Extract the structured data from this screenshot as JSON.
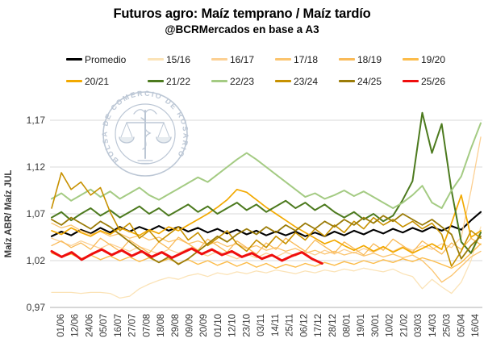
{
  "header": {
    "title": "Futuros agro: Maíz temprano / Maíz tardío",
    "subtitle": "@BCRMercados en base a A3"
  },
  "watermark": {
    "label": "BOLSA DE COMERCIO DE ROSARIO",
    "color": "#b5c1d1"
  },
  "chart_data": {
    "type": "line",
    "title": "Futuros agro: Maíz temprano / Maíz tardío",
    "subtitle": "@BCRMercados en base a A3",
    "ylabel": "Maíz ABR/ Maíz JUL",
    "xlabel": "",
    "grid": true,
    "legend_position": "top",
    "ylim": [
      0.97,
      1.19
    ],
    "yticks": [
      0.97,
      1.02,
      1.07,
      1.12,
      1.17
    ],
    "ytick_labels": [
      "0,97",
      "1,02",
      "1,07",
      "1,12",
      "1,17"
    ],
    "axis_color": "#bfbfbf",
    "grid_color": "#d9d9d9",
    "x_labels": [
      "01/06",
      "12/06",
      "24/06",
      "05/07",
      "16/07",
      "27/07",
      "07/08",
      "18/08",
      "29/08",
      "09/09",
      "20/09",
      "01/10",
      "12/10",
      "23/10",
      "03/11",
      "14/11",
      "25/11",
      "06/12",
      "17/12",
      "28/12",
      "08/01",
      "19/01",
      "30/01",
      "10/02",
      "21/02",
      "03/03",
      "14/03",
      "25/03",
      "05/04",
      "16/04"
    ],
    "series": [
      {
        "name": "Promedio",
        "color": "#000000",
        "width": 2.1,
        "span": 1,
        "values": [
          1.046,
          1.051,
          1.047,
          1.053,
          1.049,
          1.055,
          1.05,
          1.056,
          1.051,
          1.056,
          1.052,
          1.057,
          1.052,
          1.056,
          1.051,
          1.055,
          1.05,
          1.054,
          1.049,
          1.053,
          1.048,
          1.052,
          1.047,
          1.051,
          1.047,
          1.051,
          1.046,
          1.05,
          1.046,
          1.051,
          1.047,
          1.052,
          1.048,
          1.053,
          1.049,
          1.054,
          1.05,
          1.055,
          1.051,
          1.056,
          1.052,
          1.057,
          1.053,
          1.063,
          1.072
        ]
      },
      {
        "name": "15/16",
        "color": "#fbe3b7",
        "width": 1.3,
        "span": 1,
        "values": [
          0.986,
          0.986,
          0.986,
          0.985,
          0.986,
          0.986,
          0.985,
          0.98,
          0.982,
          0.99,
          0.995,
          0.999,
          1.002,
          1.0,
          1.004,
          1.006,
          1.003,
          1.007,
          1.005,
          1.008,
          1.006,
          1.009,
          1.007,
          1.01,
          1.008,
          1.006,
          1.009,
          1.007,
          1.01,
          1.008,
          1.011,
          1.009,
          1.012,
          1.01,
          1.008,
          1.011,
          1.006,
          1.003,
          0.99,
          1.0,
          0.992,
          0.985,
          0.997,
          1.02,
          1.056
        ]
      },
      {
        "name": "16/17",
        "color": "#fcd093",
        "width": 1.3,
        "span": 1,
        "values": [
          1.044,
          1.04,
          1.036,
          1.041,
          1.037,
          1.033,
          1.038,
          1.034,
          1.03,
          1.035,
          1.031,
          1.027,
          1.032,
          1.028,
          1.033,
          1.029,
          1.025,
          1.03,
          1.026,
          1.022,
          1.027,
          1.023,
          1.028,
          1.024,
          1.029,
          1.025,
          1.03,
          1.026,
          1.031,
          1.027,
          1.032,
          1.028,
          1.033,
          1.029,
          1.034,
          1.03,
          1.035,
          1.031,
          1.036,
          1.032,
          1.038,
          1.034,
          1.045,
          1.095,
          1.152
        ]
      },
      {
        "name": "17/18",
        "color": "#fbc46e",
        "width": 1.3,
        "span": 1,
        "values": [
          1.06,
          1.055,
          1.058,
          1.052,
          1.048,
          1.051,
          1.046,
          1.049,
          1.044,
          1.047,
          1.042,
          1.045,
          1.04,
          1.043,
          1.038,
          1.041,
          1.037,
          1.04,
          1.035,
          1.038,
          1.033,
          1.036,
          1.031,
          1.034,
          1.03,
          1.033,
          1.028,
          1.031,
          1.027,
          1.03,
          1.026,
          1.029,
          1.025,
          1.028,
          1.024,
          1.027,
          1.023,
          1.026,
          1.02,
          1.01,
          0.997,
          1.004,
          1.014,
          1.024,
          1.03
        ]
      },
      {
        "name": "18/19",
        "color": "#f9ba58",
        "width": 1.3,
        "span": 1,
        "values": [
          1.036,
          1.041,
          1.034,
          1.039,
          1.032,
          1.044,
          1.037,
          1.03,
          1.042,
          1.035,
          1.028,
          1.04,
          1.033,
          1.045,
          1.038,
          1.031,
          1.043,
          1.036,
          1.029,
          1.041,
          1.034,
          1.027,
          1.039,
          1.032,
          1.044,
          1.037,
          1.03,
          1.042,
          1.035,
          1.028,
          1.04,
          1.033,
          1.026,
          1.038,
          1.031,
          1.043,
          1.036,
          1.029,
          1.041,
          1.034,
          1.027,
          1.039,
          1.032,
          1.044,
          1.037
        ]
      },
      {
        "name": "19/20",
        "color": "#fcbc4a",
        "width": 1.4,
        "span": 1,
        "values": [
          1.028,
          1.024,
          1.027,
          1.022,
          1.026,
          1.021,
          1.025,
          1.02,
          1.024,
          1.019,
          1.023,
          1.018,
          1.022,
          1.017,
          1.021,
          1.016,
          1.02,
          1.015,
          1.019,
          1.014,
          1.018,
          1.013,
          1.017,
          1.012,
          1.016,
          1.013,
          1.017,
          1.014,
          1.018,
          1.015,
          1.019,
          1.016,
          1.02,
          1.017,
          1.021,
          1.018,
          1.022,
          1.019,
          1.023,
          1.02,
          1.016,
          1.012,
          1.018,
          1.028,
          1.038
        ]
      },
      {
        "name": "20/21",
        "color": "#f2a900",
        "width": 1.7,
        "span": 1,
        "values": [
          1.052,
          1.048,
          1.055,
          1.05,
          1.046,
          1.052,
          1.048,
          1.055,
          1.051,
          1.047,
          1.053,
          1.049,
          1.056,
          1.052,
          1.058,
          1.064,
          1.07,
          1.077,
          1.085,
          1.096,
          1.093,
          1.085,
          1.077,
          1.07,
          1.063,
          1.056,
          1.05,
          1.044,
          1.038,
          1.042,
          1.036,
          1.031,
          1.036,
          1.03,
          1.035,
          1.029,
          1.034,
          1.028,
          1.033,
          1.038,
          1.032,
          1.06,
          1.09,
          1.045,
          1.052
        ]
      },
      {
        "name": "21/22",
        "color": "#4c7a1e",
        "width": 2.0,
        "span": 1,
        "values": [
          1.066,
          1.072,
          1.063,
          1.07,
          1.076,
          1.068,
          1.074,
          1.066,
          1.072,
          1.078,
          1.07,
          1.076,
          1.068,
          1.074,
          1.08,
          1.072,
          1.078,
          1.07,
          1.076,
          1.082,
          1.074,
          1.08,
          1.072,
          1.078,
          1.084,
          1.076,
          1.082,
          1.074,
          1.08,
          1.072,
          1.066,
          1.072,
          1.064,
          1.07,
          1.062,
          1.068,
          1.085,
          1.105,
          1.178,
          1.135,
          1.166,
          1.095,
          1.04,
          1.028,
          1.05
        ]
      },
      {
        "name": "22/23",
        "color": "#a4cb83",
        "width": 2.0,
        "span": 1,
        "values": [
          1.086,
          1.092,
          1.084,
          1.09,
          1.096,
          1.088,
          1.094,
          1.086,
          1.092,
          1.098,
          1.09,
          1.085,
          1.091,
          1.097,
          1.103,
          1.109,
          1.104,
          1.112,
          1.12,
          1.128,
          1.135,
          1.128,
          1.12,
          1.112,
          1.104,
          1.096,
          1.088,
          1.092,
          1.086,
          1.09,
          1.095,
          1.089,
          1.094,
          1.088,
          1.082,
          1.076,
          1.082,
          1.09,
          1.1,
          1.082,
          1.076,
          1.095,
          1.11,
          1.14,
          1.167
        ]
      },
      {
        "name": "23/24",
        "color": "#c79100",
        "width": 1.6,
        "span": 1,
        "values": [
          1.076,
          1.114,
          1.096,
          1.104,
          1.09,
          1.098,
          1.072,
          1.052,
          1.06,
          1.044,
          1.052,
          1.04,
          1.048,
          1.056,
          1.042,
          1.05,
          1.036,
          1.044,
          1.052,
          1.038,
          1.03,
          1.042,
          1.034,
          1.046,
          1.038,
          1.05,
          1.042,
          1.054,
          1.046,
          1.058,
          1.05,
          1.062,
          1.054,
          1.066,
          1.058,
          1.064,
          1.056,
          1.062,
          1.054,
          1.06,
          1.048,
          1.014,
          1.03,
          1.052,
          1.044
        ]
      },
      {
        "name": "24/25",
        "color": "#9b7c08",
        "width": 1.8,
        "span": 1,
        "values": [
          1.064,
          1.058,
          1.066,
          1.06,
          1.054,
          1.062,
          1.056,
          1.048,
          1.04,
          1.032,
          1.024,
          1.018,
          1.024,
          1.016,
          1.022,
          1.03,
          1.038,
          1.046,
          1.04,
          1.048,
          1.054,
          1.048,
          1.056,
          1.05,
          1.058,
          1.052,
          1.06,
          1.054,
          1.062,
          1.056,
          1.064,
          1.058,
          1.066,
          1.06,
          1.068,
          1.062,
          1.07,
          1.064,
          1.058,
          1.064,
          1.056,
          1.048,
          1.022,
          1.036,
          1.046
        ]
      },
      {
        "name": "25/26",
        "color": "#ef0e0e",
        "width": 3.0,
        "span": 0.63,
        "values": [
          1.03,
          1.024,
          1.029,
          1.021,
          1.027,
          1.032,
          1.026,
          1.031,
          1.025,
          1.03,
          1.024,
          1.029,
          1.023,
          1.028,
          1.033,
          1.027,
          1.032,
          1.026,
          1.03,
          1.024,
          1.028,
          1.022,
          1.026,
          1.02,
          1.025,
          1.029,
          1.022,
          1.017
        ]
      }
    ]
  }
}
